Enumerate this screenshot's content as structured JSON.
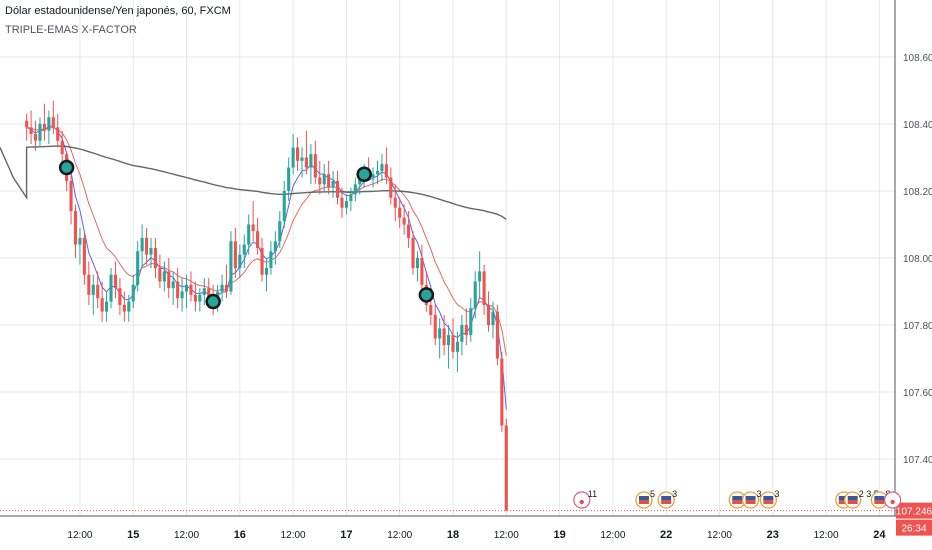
{
  "header": {
    "title": "Dólar estadounidense/Yen japonés, 60, FXCM",
    "indicator": "TRIPLE-EMAS X-FACTOR"
  },
  "chart_data": {
    "type": "candlestick",
    "symbol": "USDJPY",
    "interval": "60",
    "ylim": [
      107.23,
      108.77
    ],
    "y_ticks": [
      107.4,
      107.6,
      107.8,
      108.0,
      108.2,
      108.4,
      108.6
    ],
    "y_tick_labels": [
      "107.400",
      "107.600",
      "107.800",
      "108.000",
      "108.200",
      "108.400",
      "108.600"
    ],
    "last_price": 107.246,
    "last_price_label": "107.246",
    "countdown_label": "26:34",
    "x_tick_labels": [
      "12:00",
      "15",
      "12:00",
      "16",
      "12:00",
      "17",
      "12:00",
      "18",
      "12:00",
      "19",
      "12:00",
      "22",
      "12:00",
      "23",
      "12:00",
      "24"
    ],
    "x_tick_positions_hours": [
      12,
      24,
      36,
      48,
      60,
      72,
      84,
      96,
      108,
      120,
      132,
      144,
      156,
      168,
      180,
      192
    ],
    "x_tick_day_labels": [
      "15",
      "16",
      "17",
      "18",
      "19",
      "22",
      "23",
      "24"
    ],
    "candles": [
      [
        108.41,
        108.43,
        108.35,
        108.39
      ],
      [
        108.39,
        108.44,
        108.34,
        108.37
      ],
      [
        108.37,
        108.41,
        108.32,
        108.35
      ],
      [
        108.35,
        108.42,
        108.33,
        108.4
      ],
      [
        108.4,
        108.46,
        108.35,
        108.38
      ],
      [
        108.38,
        108.44,
        108.34,
        108.42
      ],
      [
        108.42,
        108.47,
        108.37,
        108.39
      ],
      [
        108.39,
        108.43,
        108.33,
        108.35
      ],
      [
        108.35,
        108.38,
        108.28,
        108.31
      ],
      [
        108.31,
        108.32,
        108.2,
        108.23
      ],
      [
        108.23,
        108.25,
        108.1,
        108.14
      ],
      [
        108.14,
        108.16,
        108.0,
        108.04
      ],
      [
        108.04,
        108.09,
        107.98,
        108.06
      ],
      [
        108.06,
        108.08,
        107.92,
        107.95
      ],
      [
        107.95,
        107.99,
        107.86,
        107.89
      ],
      [
        107.89,
        107.95,
        107.83,
        107.92
      ],
      [
        107.92,
        107.96,
        107.85,
        107.88
      ],
      [
        107.88,
        107.93,
        107.81,
        107.84
      ],
      [
        107.84,
        107.9,
        107.81,
        107.87
      ],
      [
        107.87,
        107.97,
        107.85,
        107.95
      ],
      [
        107.95,
        107.99,
        107.88,
        107.91
      ],
      [
        107.91,
        107.94,
        107.83,
        107.86
      ],
      [
        107.86,
        107.9,
        107.81,
        107.84
      ],
      [
        107.84,
        107.89,
        107.81,
        107.87
      ],
      [
        107.87,
        107.95,
        107.85,
        107.92
      ],
      [
        107.92,
        108.05,
        107.9,
        108.02
      ],
      [
        108.02,
        108.1,
        107.97,
        108.06
      ],
      [
        108.06,
        108.09,
        107.98,
        108.01
      ],
      [
        108.01,
        108.06,
        107.97,
        108.03
      ],
      [
        108.03,
        108.06,
        107.94,
        107.97
      ],
      [
        107.97,
        108.01,
        107.91,
        107.93
      ],
      [
        107.93,
        107.99,
        107.9,
        107.96
      ],
      [
        107.96,
        108.0,
        107.88,
        107.91
      ],
      [
        107.91,
        107.96,
        107.86,
        107.93
      ],
      [
        107.93,
        107.97,
        107.85,
        107.88
      ],
      [
        107.88,
        107.94,
        107.84,
        107.9
      ],
      [
        107.9,
        107.95,
        107.85,
        107.92
      ],
      [
        107.92,
        107.96,
        107.87,
        107.89
      ],
      [
        107.89,
        107.93,
        107.84,
        107.87
      ],
      [
        107.87,
        107.91,
        107.84,
        107.89
      ],
      [
        107.89,
        107.94,
        107.86,
        107.91
      ],
      [
        107.91,
        107.94,
        107.85,
        107.88
      ],
      [
        107.88,
        107.92,
        107.83,
        107.86
      ],
      [
        107.86,
        107.92,
        107.84,
        107.9
      ],
      [
        107.9,
        107.95,
        107.87,
        107.92
      ],
      [
        107.92,
        107.98,
        107.88,
        107.9
      ],
      [
        107.9,
        108.08,
        107.89,
        108.05
      ],
      [
        108.05,
        108.09,
        107.94,
        107.97
      ],
      [
        107.97,
        108.04,
        107.94,
        108.01
      ],
      [
        108.01,
        108.07,
        107.97,
        108.04
      ],
      [
        108.04,
        108.13,
        108.01,
        108.1
      ],
      [
        108.1,
        108.17,
        108.05,
        108.08
      ],
      [
        108.08,
        108.12,
        108.01,
        108.03
      ],
      [
        108.03,
        108.06,
        107.93,
        107.95
      ],
      [
        107.95,
        108.0,
        107.9,
        107.97
      ],
      [
        107.97,
        108.05,
        107.95,
        108.02
      ],
      [
        108.02,
        108.08,
        107.98,
        108.05
      ],
      [
        108.05,
        108.14,
        108.03,
        108.11
      ],
      [
        108.11,
        108.23,
        108.09,
        108.2
      ],
      [
        108.2,
        108.3,
        108.17,
        108.27
      ],
      [
        108.27,
        108.37,
        108.25,
        108.33
      ],
      [
        108.33,
        108.36,
        108.26,
        108.29
      ],
      [
        108.29,
        108.33,
        108.24,
        108.3
      ],
      [
        108.3,
        108.38,
        108.25,
        108.27
      ],
      [
        108.27,
        108.34,
        108.22,
        108.31
      ],
      [
        108.31,
        108.35,
        108.22,
        108.24
      ],
      [
        108.24,
        108.29,
        108.19,
        108.22
      ],
      [
        108.22,
        108.28,
        108.2,
        108.25
      ],
      [
        108.25,
        108.29,
        108.19,
        108.21
      ],
      [
        108.21,
        108.26,
        108.18,
        108.23
      ],
      [
        108.23,
        108.26,
        108.16,
        108.18
      ],
      [
        108.18,
        108.21,
        108.12,
        108.15
      ],
      [
        108.15,
        108.19,
        108.13,
        108.17
      ],
      [
        108.17,
        108.21,
        108.14,
        108.19
      ],
      [
        108.19,
        108.24,
        108.17,
        108.22
      ],
      [
        108.22,
        108.26,
        108.19,
        108.24
      ],
      [
        108.24,
        108.28,
        108.21,
        108.26
      ],
      [
        108.26,
        108.3,
        108.23,
        108.24
      ],
      [
        108.24,
        108.27,
        108.21,
        108.25
      ],
      [
        108.25,
        108.29,
        108.22,
        108.26
      ],
      [
        108.26,
        108.31,
        108.23,
        108.28
      ],
      [
        108.28,
        108.33,
        108.22,
        108.24
      ],
      [
        108.24,
        108.27,
        108.16,
        108.18
      ],
      [
        108.18,
        108.22,
        108.11,
        108.15
      ],
      [
        108.15,
        108.18,
        108.09,
        108.12
      ],
      [
        108.12,
        108.16,
        108.07,
        108.1
      ],
      [
        108.1,
        108.14,
        108.03,
        108.06
      ],
      [
        108.06,
        108.08,
        107.95,
        107.97
      ],
      [
        107.97,
        108.02,
        107.93,
        108.0
      ],
      [
        108.0,
        108.04,
        107.9,
        107.92
      ],
      [
        107.92,
        107.96,
        107.84,
        107.86
      ],
      [
        107.86,
        107.9,
        107.8,
        107.83
      ],
      [
        107.83,
        107.86,
        107.74,
        107.76
      ],
      [
        107.76,
        107.82,
        107.7,
        107.79
      ],
      [
        107.79,
        107.83,
        107.71,
        107.74
      ],
      [
        107.74,
        107.8,
        107.67,
        107.77
      ],
      [
        107.77,
        107.82,
        107.7,
        107.72
      ],
      [
        107.72,
        107.78,
        107.66,
        107.75
      ],
      [
        107.75,
        107.83,
        107.71,
        107.8
      ],
      [
        107.8,
        107.85,
        107.74,
        107.77
      ],
      [
        107.77,
        107.88,
        107.75,
        107.85
      ],
      [
        107.85,
        107.96,
        107.82,
        107.93
      ],
      [
        107.93,
        108.02,
        107.88,
        107.96
      ],
      [
        107.96,
        107.98,
        107.83,
        107.86
      ],
      [
        107.86,
        107.9,
        107.78,
        107.8
      ],
      [
        107.8,
        107.87,
        107.76,
        107.84
      ],
      [
        107.84,
        107.86,
        107.68,
        107.7
      ],
      [
        107.7,
        107.72,
        107.48,
        107.5
      ],
      [
        107.5,
        107.52,
        107.246,
        107.246
      ]
    ],
    "series": [
      {
        "name": "",
        "color": "#4c51e6",
        "length": 5
      },
      {
        "name": "",
        "color": "#e05a5a",
        "length": 13
      },
      {
        "name": "",
        "color": "#555555",
        "length": 200
      }
    ],
    "ema200_prior": [
      108.33,
      108.3,
      108.27,
      108.24,
      108.22,
      108.2,
      108.18
    ],
    "signal_markers_bar_index": [
      9,
      42,
      76,
      90
    ],
    "event_markers": [
      {
        "kind": "dot",
        "label": "11",
        "hours_after_start": 125
      },
      {
        "kind": "flag",
        "label": "5",
        "hours_after_start": 139
      },
      {
        "kind": "flag",
        "label": "3",
        "hours_after_start": 144
      },
      {
        "kind": "flag",
        "label": "",
        "hours_after_start": 160
      },
      {
        "kind": "flag",
        "label": "3",
        "hours_after_start": 163
      },
      {
        "kind": "flag",
        "label": "3",
        "hours_after_start": 167
      },
      {
        "kind": "flag",
        "label": "",
        "hours_after_start": 184
      },
      {
        "kind": "flag",
        "label": "2 3 5",
        "hours_after_start": 186
      },
      {
        "kind": "flag",
        "label": "8",
        "hours_after_start": 192
      },
      {
        "kind": "dot",
        "label": "",
        "hours_after_start": 195
      }
    ],
    "colors": {
      "up": "#26a69a",
      "down": "#ef5350",
      "grid": "#e6e8ec",
      "axis_text": "#4c525e",
      "price_line": "#ef5350",
      "signal_marker": "#26a69a",
      "signal_border": "#1a1a1a",
      "event_flag_blue": "#3b5998",
      "event_flag_red": "#d9534f",
      "event_ring": "#f0a030"
    },
    "grid": true
  }
}
